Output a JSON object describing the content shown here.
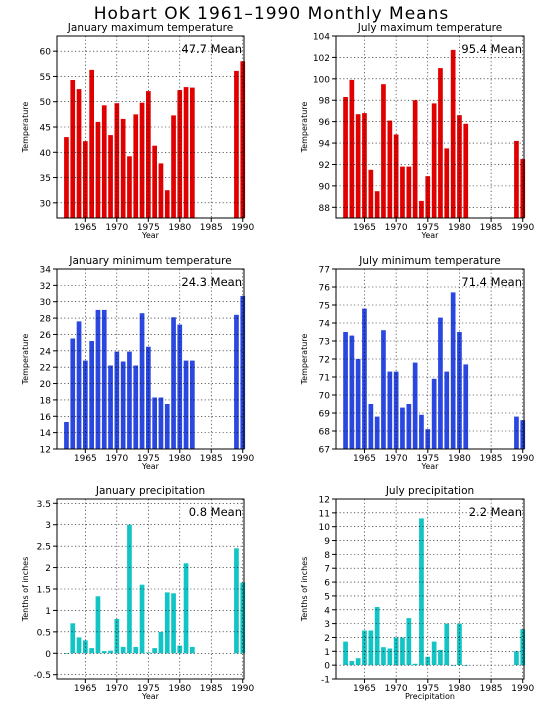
{
  "title": "Hobart OK   1961–1990 Monthly Means",
  "colors": {
    "red": "#e00000",
    "blue": "#2a48e0",
    "cyan": "#12c4c4"
  },
  "chart_data": [
    {
      "type": "bar",
      "title": "January maximum temperature",
      "xlabel": "Year",
      "ylabel": "Temperature",
      "mean_label": "47.7  Mean",
      "color": "red",
      "xlim": [
        1960.5,
        1990.2
      ],
      "ylim": [
        27,
        63
      ],
      "yticks": [
        30,
        35,
        40,
        45,
        50,
        55,
        60
      ],
      "xticks": [
        1965,
        1970,
        1975,
        1980,
        1985,
        1990
      ],
      "grid": true,
      "x": [
        1962,
        1963,
        1964,
        1965,
        1966,
        1967,
        1968,
        1969,
        1970,
        1971,
        1972,
        1973,
        1974,
        1975,
        1976,
        1977,
        1978,
        1979,
        1980,
        1981,
        1982,
        1989,
        1990
      ],
      "values": [
        43,
        54.3,
        52.5,
        42.2,
        56.3,
        46,
        49.3,
        43.4,
        49.7,
        46.6,
        39.2,
        47.5,
        49.8,
        52.1,
        41.3,
        37.8,
        32.5,
        47.3,
        52.3,
        52.9,
        52.8,
        56.1,
        58
      ]
    },
    {
      "type": "bar",
      "title": "July maximum temperature",
      "xlabel": "Year",
      "ylabel": "Temperature",
      "mean_label": "95.4  Mean",
      "color": "red",
      "xlim": [
        1960.5,
        1990.2
      ],
      "ylim": [
        87,
        104
      ],
      "yticks": [
        88,
        90,
        92,
        94,
        96,
        98,
        100,
        102,
        104
      ],
      "xticks": [
        1965,
        1970,
        1975,
        1980,
        1985,
        1990
      ],
      "grid": true,
      "x": [
        1962,
        1963,
        1964,
        1965,
        1966,
        1967,
        1968,
        1969,
        1970,
        1971,
        1972,
        1973,
        1974,
        1975,
        1976,
        1977,
        1978,
        1979,
        1980,
        1981,
        1989,
        1990
      ],
      "values": [
        98.3,
        99.9,
        96.7,
        96.8,
        91.5,
        89.5,
        99.5,
        96.1,
        94.8,
        91.8,
        91.8,
        98,
        88.6,
        90.9,
        97.7,
        101,
        93.5,
        102.7,
        96.6,
        95.8,
        94.2,
        92.5
      ]
    },
    {
      "type": "bar",
      "title": "January minimum temperature",
      "xlabel": "Year",
      "ylabel": "Temperature",
      "mean_label": "24.3  Mean",
      "color": "blue",
      "xlim": [
        1960.5,
        1990.2
      ],
      "ylim": [
        12,
        34
      ],
      "yticks": [
        12,
        14,
        16,
        18,
        20,
        22,
        24,
        26,
        28,
        30,
        32,
        34
      ],
      "xticks": [
        1965,
        1970,
        1975,
        1980,
        1985,
        1990
      ],
      "grid": true,
      "x": [
        1962,
        1963,
        1964,
        1965,
        1966,
        1967,
        1968,
        1969,
        1970,
        1971,
        1972,
        1973,
        1974,
        1975,
        1976,
        1977,
        1978,
        1979,
        1980,
        1981,
        1982,
        1989,
        1990
      ],
      "values": [
        15.3,
        25.5,
        27.6,
        22.8,
        25.2,
        29,
        29,
        22.2,
        23.9,
        22.7,
        23.9,
        22.2,
        28.6,
        24.5,
        18.3,
        18.3,
        17.5,
        28.1,
        27.2,
        22.8,
        22.8,
        28.4,
        30.7
      ]
    },
    {
      "type": "bar",
      "title": "July minimum temperature",
      "xlabel": "Year",
      "ylabel": "Temperature",
      "mean_label": "71.4  Mean",
      "color": "blue",
      "xlim": [
        1960.5,
        1990.2
      ],
      "ylim": [
        67,
        77
      ],
      "yticks": [
        67,
        68,
        69,
        70,
        71,
        72,
        73,
        74,
        75,
        76,
        77
      ],
      "xticks": [
        1965,
        1970,
        1975,
        1980,
        1985,
        1990
      ],
      "grid": true,
      "x": [
        1962,
        1963,
        1964,
        1965,
        1966,
        1967,
        1968,
        1969,
        1970,
        1971,
        1972,
        1973,
        1974,
        1975,
        1976,
        1977,
        1978,
        1979,
        1980,
        1981,
        1989,
        1990
      ],
      "values": [
        73.5,
        73.3,
        72,
        74.8,
        69.5,
        68.8,
        73.6,
        71.3,
        71.3,
        69.3,
        69.5,
        71.8,
        68.9,
        68.1,
        70.9,
        74.3,
        71.3,
        75.7,
        73.5,
        71.7,
        68.8,
        68.6
      ]
    },
    {
      "type": "bar",
      "title": "January precipitation",
      "xlabel": "Year",
      "ylabel": "Tenths of inches",
      "mean_label": "0.8  Mean",
      "color": "cyan",
      "xlim": [
        1960.5,
        1990.2
      ],
      "ylim": [
        -0.6,
        3.6
      ],
      "yticks": [
        -0.5,
        0,
        0.5,
        1,
        1.5,
        2,
        2.5,
        3,
        3.5
      ],
      "ytick_labels": [
        "-0.5",
        "0",
        "0.5",
        "1",
        "1.5",
        "2",
        "2.5",
        "3",
        "3.5"
      ],
      "xticks": [
        1965,
        1970,
        1975,
        1980,
        1985,
        1990
      ],
      "grid": true,
      "x": [
        1962,
        1963,
        1964,
        1965,
        1966,
        1967,
        1968,
        1969,
        1970,
        1971,
        1972,
        1973,
        1974,
        1975,
        1976,
        1977,
        1978,
        1979,
        1980,
        1981,
        1982,
        1989,
        1990
      ],
      "values": [
        0,
        0.7,
        0.37,
        0.3,
        0.12,
        1.33,
        0.05,
        0.06,
        0.8,
        0.15,
        3,
        0.15,
        1.6,
        0.02,
        0.12,
        0.5,
        1.42,
        1.4,
        0.18,
        2.1,
        0.15,
        2.45,
        1.65
      ]
    },
    {
      "type": "bar",
      "title": "July precipitation",
      "xlabel": "Precipitation",
      "ylabel": "Tenths of inches",
      "mean_label": "2.2  Mean",
      "color": "cyan",
      "xlim": [
        1960.5,
        1990.2
      ],
      "ylim": [
        -1,
        12
      ],
      "yticks": [
        -1,
        0,
        1,
        2,
        3,
        4,
        5,
        6,
        7,
        8,
        9,
        10,
        11,
        12
      ],
      "xticks": [
        1965,
        1970,
        1975,
        1980,
        1985,
        1990
      ],
      "grid": true,
      "x": [
        1962,
        1963,
        1964,
        1965,
        1966,
        1967,
        1968,
        1969,
        1970,
        1971,
        1972,
        1973,
        1974,
        1975,
        1976,
        1977,
        1978,
        1979,
        1980,
        1981,
        1989,
        1990
      ],
      "values": [
        1.7,
        0.3,
        0.5,
        2.5,
        2.5,
        4.2,
        1.3,
        1.2,
        2,
        2,
        3.4,
        0.1,
        10.6,
        0.6,
        1.7,
        1.1,
        3,
        0,
        3,
        0,
        1,
        2.6
      ]
    }
  ]
}
